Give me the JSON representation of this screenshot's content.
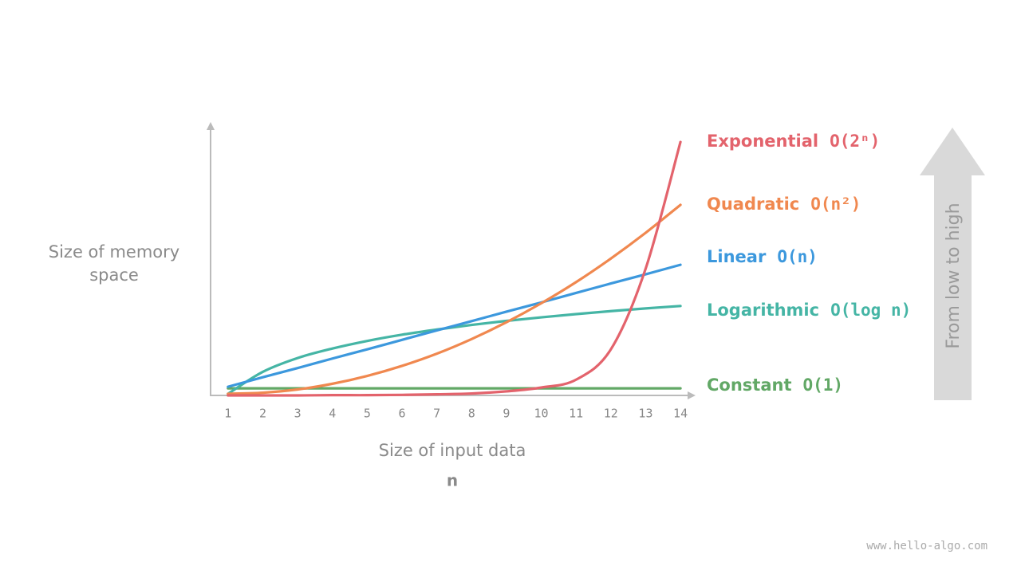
{
  "chart_data": {
    "type": "line",
    "y_label": "Size of memory space",
    "x_label": "Size of input data",
    "x_symbol": "n",
    "side_label": "From low to high",
    "watermark": "www.hello-algo.com",
    "x": [
      1,
      2,
      3,
      4,
      5,
      6,
      7,
      8,
      9,
      10,
      11,
      12,
      13,
      14
    ],
    "xlim": [
      0.5,
      14.25
    ],
    "xticks": [
      1,
      2,
      3,
      4,
      5,
      6,
      7,
      8,
      9,
      10,
      11,
      12,
      13,
      14
    ],
    "ylim": [
      0,
      100
    ],
    "series": [
      {
        "name": "Exponential",
        "notation": "O(2ⁿ)",
        "color": "#e3636c",
        "values": [
          0,
          0,
          0,
          0.1,
          0.1,
          0.2,
          0.4,
          0.7,
          1.5,
          2.9,
          5.8,
          17,
          46.8,
          93.5
        ]
      },
      {
        "name": "Quadratic",
        "notation": "O(n²)",
        "color": "#f0884f",
        "values": [
          0.6,
          1.0,
          2.2,
          4.3,
          7.2,
          10.9,
          15.4,
          20.8,
          27.0,
          34.0,
          41.8,
          50.5,
          60.0,
          70.3
        ]
      },
      {
        "name": "Linear",
        "notation": "O(n)",
        "color": "#3c98dd",
        "values": [
          3.2,
          6.7,
          10.1,
          13.6,
          17.0,
          20.5,
          24.0,
          27.4,
          30.9,
          34.3,
          37.8,
          41.3,
          44.7,
          48.2
        ]
      },
      {
        "name": "Logarithmic",
        "notation": "O(log n)",
        "color": "#45b5a5",
        "values": [
          0.6,
          8.7,
          13.8,
          17.3,
          20.1,
          22.4,
          24.3,
          26.0,
          27.5,
          28.8,
          30.0,
          31.1,
          32.1,
          33.0
        ]
      },
      {
        "name": "Constant",
        "notation": "O(1)",
        "color": "#62a866",
        "values": [
          2.6,
          2.6,
          2.6,
          2.6,
          2.6,
          2.6,
          2.6,
          2.6,
          2.6,
          2.6,
          2.6,
          2.6,
          2.6,
          2.6
        ]
      }
    ]
  }
}
